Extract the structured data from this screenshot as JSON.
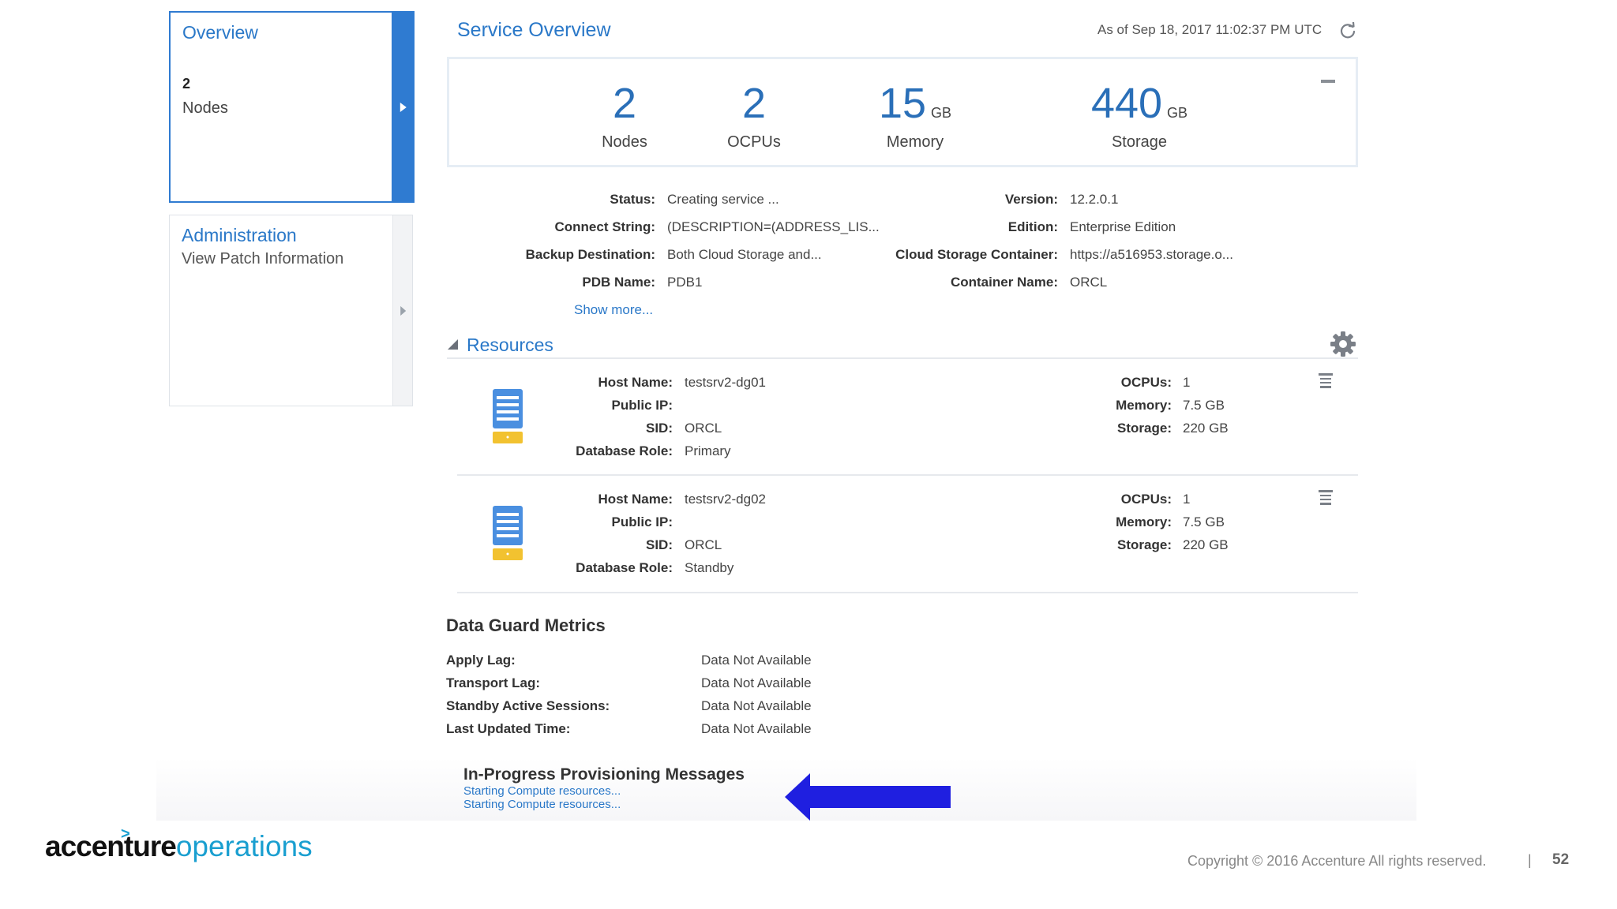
{
  "sidebar": {
    "overview": {
      "title": "Overview",
      "count": "2",
      "label": "Nodes"
    },
    "administration": {
      "title": "Administration",
      "link": "View Patch Information"
    }
  },
  "header": {
    "title": "Service Overview",
    "as_of": "As of Sep 18, 2017 11:02:37 PM UTC"
  },
  "summary": {
    "nodes": {
      "value": "2",
      "label": "Nodes"
    },
    "ocpus": {
      "value": "2",
      "label": "OCPUs"
    },
    "memory": {
      "value": "15",
      "unit": "GB",
      "label": "Memory"
    },
    "storage": {
      "value": "440",
      "unit": "GB",
      "label": "Storage"
    }
  },
  "details": {
    "status_label": "Status:",
    "status": "Creating service ...",
    "connect_label": "Connect String:",
    "connect": "(DESCRIPTION=(ADDRESS_LIS...",
    "backup_label": "Backup Destination:",
    "backup": "Both Cloud Storage and...",
    "pdb_label": "PDB Name:",
    "pdb": "PDB1",
    "version_label": "Version:",
    "version": "12.2.0.1",
    "edition_label": "Edition:",
    "edition": "Enterprise Edition",
    "container_label": "Cloud Storage Container:",
    "container": "https://a516953.storage.o...",
    "cname_label": "Container Name:",
    "cname": "ORCL",
    "show_more": "Show more..."
  },
  "resources": {
    "title": "Resources",
    "labels": {
      "host": "Host Name:",
      "ip": "Public IP:",
      "sid": "SID:",
      "role": "Database Role:",
      "ocpus": "OCPUs:",
      "memory": "Memory:",
      "storage": "Storage:"
    },
    "nodes": [
      {
        "host": "testsrv2-dg01",
        "ip": "",
        "sid": "ORCL",
        "role": "Primary",
        "ocpus": "1",
        "memory": "7.5 GB",
        "storage": "220 GB"
      },
      {
        "host": "testsrv2-dg02",
        "ip": "",
        "sid": "ORCL",
        "role": "Standby",
        "ocpus": "1",
        "memory": "7.5 GB",
        "storage": "220 GB"
      }
    ]
  },
  "data_guard": {
    "title": "Data Guard Metrics",
    "rows": [
      {
        "label": "Apply Lag:",
        "value": "Data Not Available"
      },
      {
        "label": "Transport Lag:",
        "value": "Data Not Available"
      },
      {
        "label": "Standby Active Sessions:",
        "value": "Data Not Available"
      },
      {
        "label": "Last Updated Time:",
        "value": "Data Not Available"
      }
    ]
  },
  "provisioning": {
    "title": "In-Progress Provisioning Messages",
    "messages": [
      "Starting Compute resources...",
      "Starting Compute resources..."
    ]
  },
  "footer": {
    "logo_dark": "accenture",
    "logo_light": "operations",
    "logo_caret": ">",
    "copyright": "Copyright © 2016 Accenture  All rights reserved.",
    "separator": "|",
    "page": "52"
  },
  "colors": {
    "accent": "#2a78c8",
    "arrow": "#1f1fe0",
    "logo_blue": "#1a9fd0"
  },
  "icons": [
    "refresh-icon",
    "gear-icon",
    "server-icon",
    "menu-icon",
    "chevron-right-icon",
    "collapse-icon",
    "expand-triangle-icon"
  ]
}
